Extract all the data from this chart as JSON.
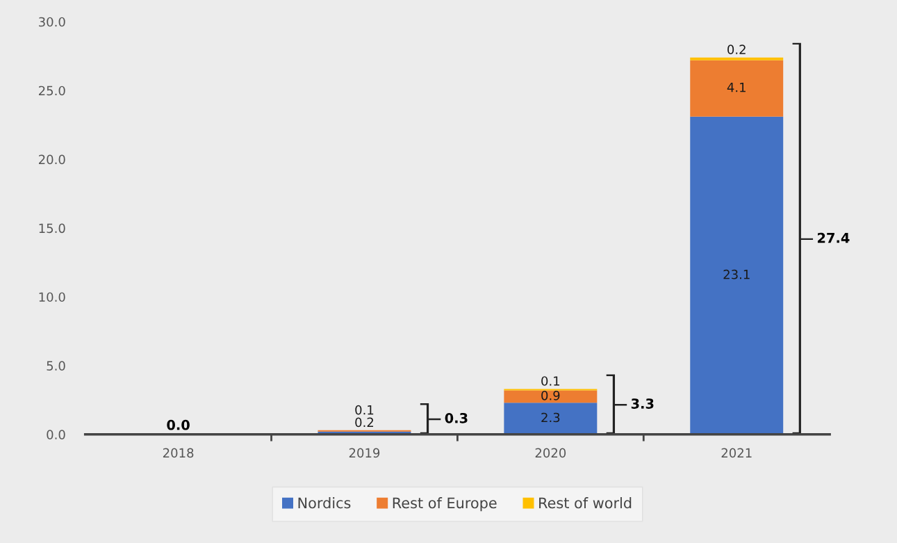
{
  "chart_data": {
    "type": "bar",
    "stacked": true,
    "categories": [
      "2018",
      "2019",
      "2020",
      "2021"
    ],
    "series": [
      {
        "name": "Nordics",
        "color": "#4472c4",
        "values": [
          0,
          0.2,
          2.3,
          23.1
        ],
        "value_labels": [
          null,
          "0.2",
          "2.3",
          "23.1"
        ]
      },
      {
        "name": "Rest of Europe",
        "color": "#ed7d31",
        "values": [
          0,
          0.1,
          0.9,
          4.1
        ],
        "value_labels": [
          null,
          "0.1",
          "0.9",
          "4.1"
        ]
      },
      {
        "name": "Rest of world",
        "color": "#ffc000",
        "values": [
          0,
          0,
          0.1,
          0.2
        ],
        "value_labels": [
          null,
          null,
          "0.1",
          "0.2"
        ]
      }
    ],
    "totals": [
      "0.0",
      "0.3",
      "3.3",
      "27.4"
    ],
    "ylim": [
      0,
      30
    ],
    "yticks": [
      {
        "value": 0,
        "label": "0.0"
      },
      {
        "value": 5,
        "label": "5.0"
      },
      {
        "value": 10,
        "label": "10.0"
      },
      {
        "value": 15,
        "label": "15.0"
      },
      {
        "value": 20,
        "label": "20.0"
      },
      {
        "value": 25,
        "label": "25.0"
      },
      {
        "value": 30,
        "label": "30.0"
      }
    ],
    "grid": false,
    "legend": "bottom"
  }
}
